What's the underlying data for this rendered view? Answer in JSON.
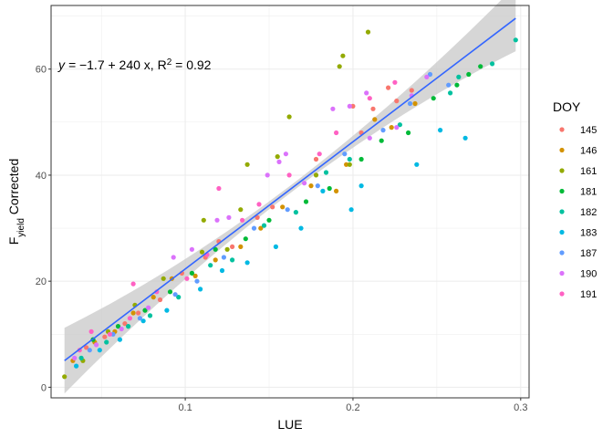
{
  "chart_data": {
    "type": "scatter",
    "title": "",
    "xlabel": "LUE",
    "ylabel": "F_yield Corrected",
    "ylabel_parts": {
      "main": "F",
      "sub": "yield",
      "rest": " Corrected"
    },
    "xlim": [
      0.02,
      0.305
    ],
    "ylim": [
      -2,
      72
    ],
    "x_ticks": [
      0.1,
      0.2,
      0.3
    ],
    "x_tick_labels": [
      "0.1",
      "0.2",
      "0.3"
    ],
    "y_ticks": [
      0,
      20,
      40,
      60
    ],
    "y_tick_labels": [
      "0",
      "20",
      "40",
      "60"
    ],
    "grid": true,
    "legend_title": "DOY",
    "legend_position": "right",
    "annotation": {
      "eq_prefix": "y = ",
      "eq_body": "−1.7 + 240 x,  R",
      "eq_sup": "2",
      "eq_suffix": " = 0.92"
    },
    "fit_line": {
      "intercept": -1.7,
      "slope": 240,
      "x_range": [
        0.028,
        0.297
      ],
      "color": "#3366FF",
      "ribbon_color": "#C8C8C8"
    },
    "series": [
      {
        "name": "145",
        "color": "#F8766D",
        "points": [
          [
            0.041,
            7.5
          ],
          [
            0.052,
            9.5
          ],
          [
            0.064,
            12.0
          ],
          [
            0.072,
            14.0
          ],
          [
            0.085,
            16.5
          ],
          [
            0.098,
            21.5
          ],
          [
            0.112,
            24.5
          ],
          [
            0.12,
            27.5
          ],
          [
            0.128,
            26.5
          ],
          [
            0.143,
            32.0
          ],
          [
            0.152,
            34.0
          ],
          [
            0.178,
            43.0
          ],
          [
            0.2,
            53.0
          ],
          [
            0.212,
            52.5
          ],
          [
            0.226,
            54.0
          ],
          [
            0.235,
            56.0
          ],
          [
            0.221,
            56.5
          ],
          [
            0.205,
            48.0
          ]
        ]
      },
      {
        "name": "146",
        "color": "#D39200",
        "points": [
          [
            0.033,
            5.0
          ],
          [
            0.046,
            8.5
          ],
          [
            0.058,
            10.5
          ],
          [
            0.069,
            14.0
          ],
          [
            0.081,
            17.0
          ],
          [
            0.092,
            20.5
          ],
          [
            0.106,
            21.0
          ],
          [
            0.118,
            24.0
          ],
          [
            0.133,
            26.5
          ],
          [
            0.145,
            30.0
          ],
          [
            0.158,
            34.0
          ],
          [
            0.175,
            38.0
          ],
          [
            0.19,
            37.0
          ],
          [
            0.196,
            42.0
          ],
          [
            0.213,
            50.5
          ],
          [
            0.223,
            49.0
          ],
          [
            0.237,
            53.5
          ]
        ]
      },
      {
        "name": "161",
        "color": "#93AA00",
        "points": [
          [
            0.028,
            2.0
          ],
          [
            0.039,
            5.0
          ],
          [
            0.054,
            10.5
          ],
          [
            0.07,
            15.5
          ],
          [
            0.087,
            20.5
          ],
          [
            0.11,
            25.5
          ],
          [
            0.111,
            31.5
          ],
          [
            0.125,
            26.0
          ],
          [
            0.133,
            33.5
          ],
          [
            0.137,
            42.0
          ],
          [
            0.155,
            43.5
          ],
          [
            0.162,
            51.0
          ],
          [
            0.178,
            40.0
          ],
          [
            0.192,
            60.5
          ],
          [
            0.194,
            62.5
          ],
          [
            0.209,
            67.0
          ],
          [
            0.198,
            42.0
          ]
        ]
      },
      {
        "name": "181",
        "color": "#00BA38",
        "points": [
          [
            0.045,
            9.0
          ],
          [
            0.06,
            11.5
          ],
          [
            0.076,
            14.5
          ],
          [
            0.091,
            18.0
          ],
          [
            0.104,
            21.5
          ],
          [
            0.118,
            26.0
          ],
          [
            0.136,
            28.0
          ],
          [
            0.15,
            31.5
          ],
          [
            0.172,
            35.0
          ],
          [
            0.186,
            37.5
          ],
          [
            0.205,
            43.0
          ],
          [
            0.217,
            46.5
          ],
          [
            0.233,
            48.0
          ],
          [
            0.248,
            54.5
          ],
          [
            0.262,
            57.0
          ],
          [
            0.269,
            59.0
          ],
          [
            0.276,
            60.5
          ]
        ]
      },
      {
        "name": "182",
        "color": "#00C19F",
        "points": [
          [
            0.038,
            5.5
          ],
          [
            0.053,
            8.5
          ],
          [
            0.066,
            11.5
          ],
          [
            0.079,
            13.5
          ],
          [
            0.096,
            17.0
          ],
          [
            0.115,
            23.0
          ],
          [
            0.128,
            24.0
          ],
          [
            0.147,
            30.5
          ],
          [
            0.166,
            33.0
          ],
          [
            0.184,
            40.5
          ],
          [
            0.198,
            43.0
          ],
          [
            0.228,
            49.5
          ],
          [
            0.258,
            55.5
          ],
          [
            0.263,
            58.5
          ],
          [
            0.283,
            61.0
          ],
          [
            0.297,
            65.5
          ]
        ]
      },
      {
        "name": "183",
        "color": "#00B9E3",
        "points": [
          [
            0.035,
            4.0
          ],
          [
            0.049,
            7.0
          ],
          [
            0.061,
            9.0
          ],
          [
            0.075,
            12.5
          ],
          [
            0.089,
            14.5
          ],
          [
            0.109,
            18.5
          ],
          [
            0.122,
            22.0
          ],
          [
            0.137,
            23.5
          ],
          [
            0.154,
            26.5
          ],
          [
            0.169,
            30.0
          ],
          [
            0.182,
            37.0
          ],
          [
            0.199,
            33.5
          ],
          [
            0.205,
            38.0
          ],
          [
            0.238,
            42.0
          ],
          [
            0.252,
            48.5
          ],
          [
            0.267,
            47.0
          ]
        ]
      },
      {
        "name": "187",
        "color": "#619CFF",
        "points": [
          [
            0.043,
            7.0
          ],
          [
            0.057,
            10.0
          ],
          [
            0.073,
            13.0
          ],
          [
            0.094,
            17.5
          ],
          [
            0.107,
            20.0
          ],
          [
            0.123,
            24.5
          ],
          [
            0.141,
            30.0
          ],
          [
            0.161,
            33.5
          ],
          [
            0.179,
            38.0
          ],
          [
            0.195,
            44.0
          ],
          [
            0.218,
            48.5
          ],
          [
            0.234,
            53.5
          ],
          [
            0.246,
            59.0
          ],
          [
            0.257,
            57.0
          ]
        ]
      },
      {
        "name": "190",
        "color": "#DB72FB",
        "points": [
          [
            0.034,
            5.5
          ],
          [
            0.047,
            8.0
          ],
          [
            0.062,
            11.0
          ],
          [
            0.078,
            15.0
          ],
          [
            0.093,
            24.5
          ],
          [
            0.104,
            26.0
          ],
          [
            0.119,
            31.5
          ],
          [
            0.126,
            32.0
          ],
          [
            0.149,
            40.0
          ],
          [
            0.156,
            42.5
          ],
          [
            0.16,
            44.0
          ],
          [
            0.171,
            38.5
          ],
          [
            0.188,
            52.5
          ],
          [
            0.198,
            53.0
          ],
          [
            0.21,
            47.0
          ],
          [
            0.226,
            49.0
          ],
          [
            0.244,
            58.5
          ],
          [
            0.235,
            55.0
          ],
          [
            0.208,
            55.5
          ]
        ]
      },
      {
        "name": "191",
        "color": "#FF61C3",
        "points": [
          [
            0.037,
            7.0
          ],
          [
            0.044,
            10.5
          ],
          [
            0.055,
            10.0
          ],
          [
            0.067,
            13.0
          ],
          [
            0.069,
            19.5
          ],
          [
            0.083,
            18.0
          ],
          [
            0.101,
            20.5
          ],
          [
            0.113,
            25.0
          ],
          [
            0.12,
            37.5
          ],
          [
            0.134,
            31.5
          ],
          [
            0.144,
            34.5
          ],
          [
            0.162,
            40.0
          ],
          [
            0.18,
            44.0
          ],
          [
            0.19,
            48.0
          ],
          [
            0.21,
            54.5
          ],
          [
            0.225,
            57.5
          ]
        ]
      }
    ]
  }
}
